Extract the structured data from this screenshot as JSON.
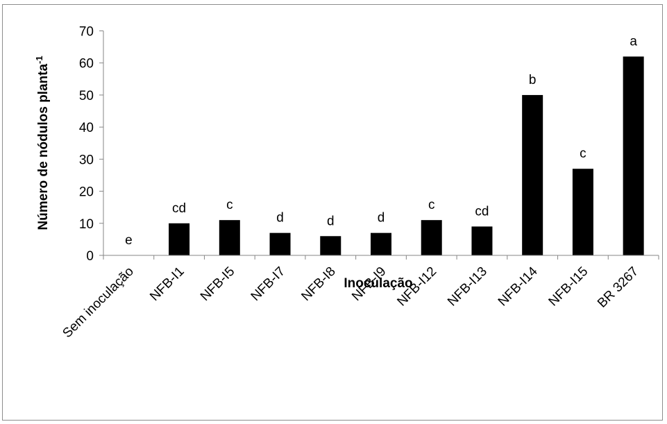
{
  "chart_data": {
    "type": "bar",
    "title": "",
    "xlabel": "Inoculação",
    "ylabel": {
      "main": "Número de nódulos planta",
      "superscript": "-1"
    },
    "ylim": [
      0,
      70
    ],
    "yticks": [
      "0",
      "10",
      "20",
      "30",
      "40",
      "50",
      "60",
      "70"
    ],
    "categories": [
      "Sem inoculação",
      "NFB-I1",
      "NFB-I5",
      "NFB-I7",
      "NFB-I8",
      "NFB-I9",
      "NFB-I12",
      "NFB-I13",
      "NFB-I14",
      "NFB-I15",
      "BR 3267"
    ],
    "values": [
      0,
      10,
      11,
      7,
      6,
      7,
      11,
      9,
      50,
      27,
      62
    ],
    "letters": [
      "e",
      "cd",
      "c",
      "d",
      "d",
      "d",
      "c",
      "cd",
      "b",
      "c",
      "a"
    ],
    "grid": false,
    "bar_color": "#000000"
  }
}
